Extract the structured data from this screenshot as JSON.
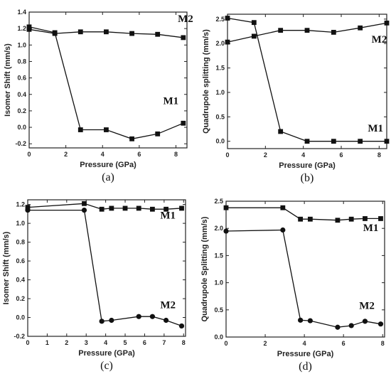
{
  "chart_data": [
    {
      "type": "line",
      "panel_label": "(a)",
      "xlabel": "Pressure (GPa)",
      "ylabel": "Isomer Shift (mm/s)",
      "xlim": [
        0,
        8.6
      ],
      "ylim": [
        -0.25,
        1.4
      ],
      "xticks": [
        0,
        2,
        4,
        6,
        8
      ],
      "yticks": [
        -0.2,
        0.0,
        0.2,
        0.4,
        0.6,
        0.8,
        1.0,
        1.2,
        1.4
      ],
      "ytick_labels": [
        "-0.2",
        "0.0",
        "0.2",
        "0.4",
        "0.6",
        "0.8",
        "1.0",
        "1.2",
        "1.4"
      ],
      "series": [
        {
          "name": "M2",
          "marker": "square",
          "label_at": [
            8.1,
            1.28
          ],
          "x": [
            0,
            1.4,
            2.8,
            4.2,
            5.6,
            7.0,
            8.4
          ],
          "y": [
            1.19,
            1.14,
            1.16,
            1.16,
            1.14,
            1.13,
            1.09
          ]
        },
        {
          "name": "M1",
          "marker": "square",
          "label_at": [
            7.3,
            0.28
          ],
          "x": [
            0,
            1.4,
            2.8,
            4.2,
            5.6,
            7.0,
            8.4
          ],
          "y": [
            1.22,
            1.15,
            -0.03,
            -0.03,
            -0.14,
            -0.08,
            0.05
          ]
        }
      ]
    },
    {
      "type": "line",
      "panel_label": "(b)",
      "xlabel": "Pressure (GPa)",
      "ylabel": "Quadrupole splitting (mm/s)",
      "xlim": [
        0,
        8.4
      ],
      "ylim": [
        -0.15,
        2.6
      ],
      "xticks": [
        0,
        2,
        4,
        6,
        8
      ],
      "yticks": [
        0.0,
        0.5,
        1.0,
        1.5,
        2.0,
        2.5
      ],
      "ytick_labels": [
        "0.0",
        "0.5",
        "1.0",
        "1.5",
        "2.0",
        "2.5"
      ],
      "series": [
        {
          "name": "M2",
          "marker": "square",
          "label_at": [
            7.6,
            2.02
          ],
          "x": [
            0,
            1.4,
            2.8,
            4.2,
            5.6,
            7.0,
            8.4
          ],
          "y": [
            2.03,
            2.15,
            2.27,
            2.27,
            2.23,
            2.32,
            2.42
          ]
        },
        {
          "name": "M1",
          "marker": "square",
          "label_at": [
            7.4,
            0.2
          ],
          "x": [
            0,
            1.4,
            2.8,
            4.2,
            5.6,
            7.0,
            8.4
          ],
          "y": [
            2.52,
            2.43,
            0.2,
            0.0,
            0.0,
            0.0,
            0.0
          ]
        }
      ]
    },
    {
      "type": "line",
      "panel_label": "(c)",
      "xlabel": "Pressure (GPa)",
      "ylabel": "Isomer Shift (mm/s)",
      "xlim": [
        0,
        8.1
      ],
      "ylim": [
        -0.2,
        1.25
      ],
      "xticks": [
        0,
        1,
        2,
        3,
        4,
        5,
        6,
        7,
        8
      ],
      "yticks": [
        -0.2,
        0.0,
        0.2,
        0.4,
        0.6,
        0.8,
        1.0,
        1.2
      ],
      "ytick_labels": [
        "-0.2",
        "0.0",
        "0.2",
        "0.4",
        "0.6",
        "0.8",
        "1.0",
        "1.2"
      ],
      "series": [
        {
          "name": "M1",
          "marker": "square",
          "label_at": [
            6.8,
            1.05
          ],
          "x": [
            0,
            2.9,
            3.8,
            4.3,
            5.0,
            5.7,
            6.4,
            7.1,
            7.9
          ],
          "y": [
            1.17,
            1.21,
            1.15,
            1.16,
            1.16,
            1.16,
            1.15,
            1.15,
            1.16
          ]
        },
        {
          "name": "M2",
          "marker": "circle",
          "label_at": [
            6.8,
            0.1
          ],
          "x": [
            0,
            2.9,
            3.8,
            4.3,
            5.7,
            6.4,
            7.1,
            7.9
          ],
          "y": [
            1.14,
            1.14,
            -0.04,
            -0.03,
            0.01,
            0.01,
            -0.03,
            -0.09
          ]
        }
      ]
    },
    {
      "type": "line",
      "panel_label": "(d)",
      "xlabel": "Pressure (GPa)",
      "ylabel": "Quadrupole Splitting (mm/s)",
      "xlim": [
        0,
        8.1
      ],
      "ylim": [
        0,
        2.5
      ],
      "xticks": [
        0,
        2,
        4,
        6,
        8
      ],
      "yticks": [
        0.0,
        0.5,
        1.0,
        1.5,
        2.0,
        2.5
      ],
      "ytick_labels": [
        "0.0",
        "0.5",
        "1.0",
        "1.5",
        "2.0",
        "2.5"
      ],
      "series": [
        {
          "name": "M1",
          "marker": "square",
          "label_at": [
            7.0,
            1.95
          ],
          "x": [
            0,
            2.9,
            3.8,
            4.3,
            5.7,
            6.4,
            7.1,
            7.9
          ],
          "y": [
            2.38,
            2.38,
            2.17,
            2.17,
            2.15,
            2.17,
            2.18,
            2.18
          ]
        },
        {
          "name": "M2",
          "marker": "circle",
          "label_at": [
            6.8,
            0.52
          ],
          "x": [
            0,
            2.9,
            3.8,
            4.3,
            5.7,
            6.4,
            7.1,
            7.9
          ],
          "y": [
            1.95,
            1.97,
            0.31,
            0.3,
            0.18,
            0.21,
            0.29,
            0.24
          ]
        }
      ]
    }
  ]
}
